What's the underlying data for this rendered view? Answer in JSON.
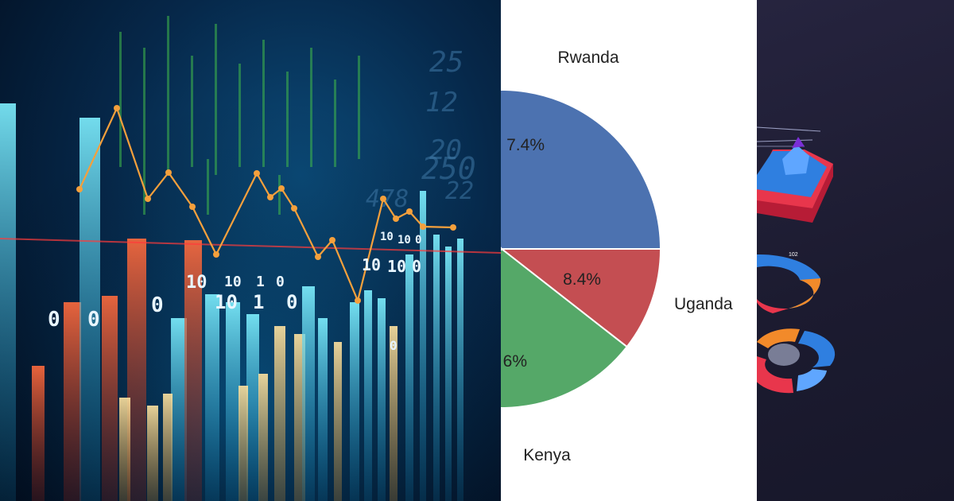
{
  "left_panel": {
    "digits": [
      "10",
      "1",
      "0",
      "10",
      "1",
      "0",
      "0",
      "10",
      "0",
      "0",
      "10",
      "10",
      "0",
      "10",
      "10",
      "0",
      "0"
    ],
    "background_numbers": [
      "25",
      "12",
      "20",
      "250",
      "478",
      "22"
    ],
    "colors": {
      "cyan": "#27d4f2",
      "red": "#e8472a",
      "yellow": "#f4c06a",
      "line": "#f5a03c",
      "green": "#3fb84a"
    }
  },
  "chart_data": {
    "type": "pie",
    "slices": [
      {
        "label": "Rwanda",
        "percent_text": "7.4%",
        "value": null,
        "color": "#4c72b0"
      },
      {
        "label": "Uganda",
        "percent_text": "8.4%",
        "value": 8.4,
        "color": "#c44e52"
      },
      {
        "label": "Kenya",
        "percent_text": "6%",
        "value": null,
        "color": "#55a868"
      }
    ],
    "note": "pie is cropped on the left; partial percentage labels shown as visible"
  },
  "right_panel": {
    "ring_label": "102",
    "colors": {
      "blue": "#2f7fe0",
      "red": "#e8364c",
      "orange": "#f28a2a",
      "purple": "#7a2fd6"
    }
  }
}
